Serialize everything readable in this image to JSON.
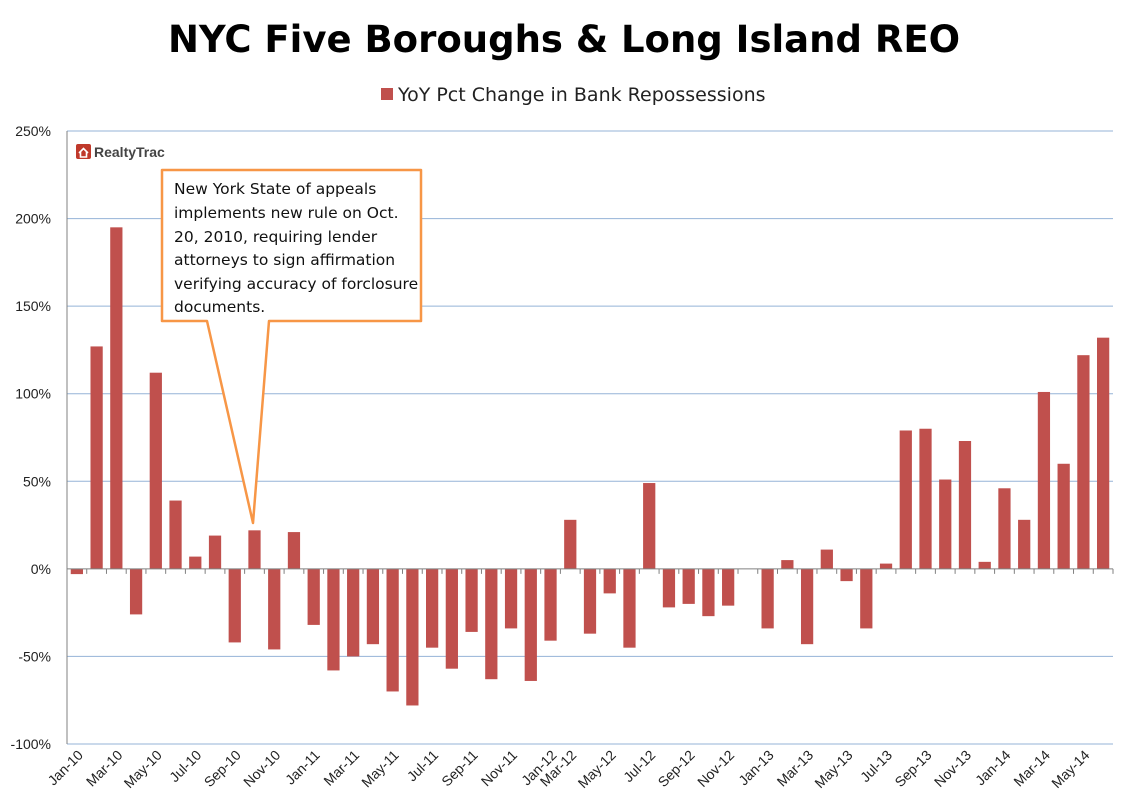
{
  "chart_data": {
    "type": "bar",
    "title": "NYC Five Boroughs & Long Island REO",
    "legend": {
      "position": "top",
      "entries": [
        "YoY Pct Change in Bank Repossessions"
      ]
    },
    "series": [
      {
        "name": "YoY Pct Change in Bank Repossessions",
        "color": "#c0504d",
        "values": [
          -3,
          127,
          195,
          -26,
          112,
          39,
          7,
          19,
          -42,
          22,
          -46,
          21,
          -32,
          -58,
          -50,
          -43,
          -70,
          -78,
          -45,
          -57,
          -36,
          -63,
          -34,
          -64,
          -41,
          28,
          -37,
          -14,
          -45,
          49,
          -22,
          -20,
          -27,
          -21,
          0,
          -34,
          5,
          -43,
          11,
          -7,
          -34,
          3,
          79,
          80,
          51,
          73,
          4,
          46,
          28,
          101,
          60,
          122,
          132
        ]
      }
    ],
    "categories": [
      "Jan-10",
      "Feb-10",
      "Mar-10",
      "Apr-10",
      "May-10",
      "Jun-10",
      "Jul-10",
      "Aug-10",
      "Sep-10",
      "Oct-10",
      "Nov-10",
      "Dec-10",
      "Jan-11",
      "Feb-11",
      "Mar-11",
      "Apr-11",
      "May-11",
      "Jun-11",
      "Jul-11",
      "Aug-11",
      "Sep-11",
      "Oct-11",
      "Nov-11",
      "Dec-11",
      "Jan-12",
      "Mar-12",
      "Apr-12",
      "May-12",
      "Jun-12",
      "Jul-12",
      "Aug-12",
      "Sep-12",
      "Oct-12",
      "Nov-12",
      "Dec-12",
      "Jan-13",
      "Feb-13",
      "Mar-13",
      "Apr-13",
      "May-13",
      "Jun-13",
      "Jul-13",
      "Aug-13",
      "Sep-13",
      "Oct-13",
      "Nov-13",
      "Dec-13",
      "Jan-14",
      "Feb-14",
      "Mar-14",
      "Apr-14",
      "May-14",
      "Jun-14"
    ],
    "x_tick_labels": [
      "Jan-10",
      "Mar-10",
      "May-10",
      "Jul-10",
      "Sep-10",
      "Nov-10",
      "Jan-11",
      "Mar-11",
      "May-11",
      "Jul-11",
      "Sep-11",
      "Nov-11",
      "Jan-12",
      "Mar-12",
      "May-12",
      "Jul-12",
      "Sep-12",
      "Nov-12",
      "Jan-13",
      "Mar-13",
      "May-13",
      "Jul-13",
      "Sep-13",
      "Nov-13",
      "Jan-14",
      "Mar-14",
      "May-14"
    ],
    "y_tick_labels": [
      "250%",
      "200%",
      "150%",
      "100%",
      "50%",
      "0%",
      "-50%",
      "-100%"
    ],
    "ylim": [
      -100,
      250
    ],
    "grid": true,
    "annotation": {
      "lines": [
        "New York State of appeals",
        "implements new rule on Oct.",
        "20, 2010, requiring lender",
        "attorneys to sign affirmation",
        "verifying accuracy of forclosure",
        "documents."
      ],
      "points_to": "Oct-10",
      "border_color": "#f79646"
    },
    "logo": "RealtyTrac"
  }
}
